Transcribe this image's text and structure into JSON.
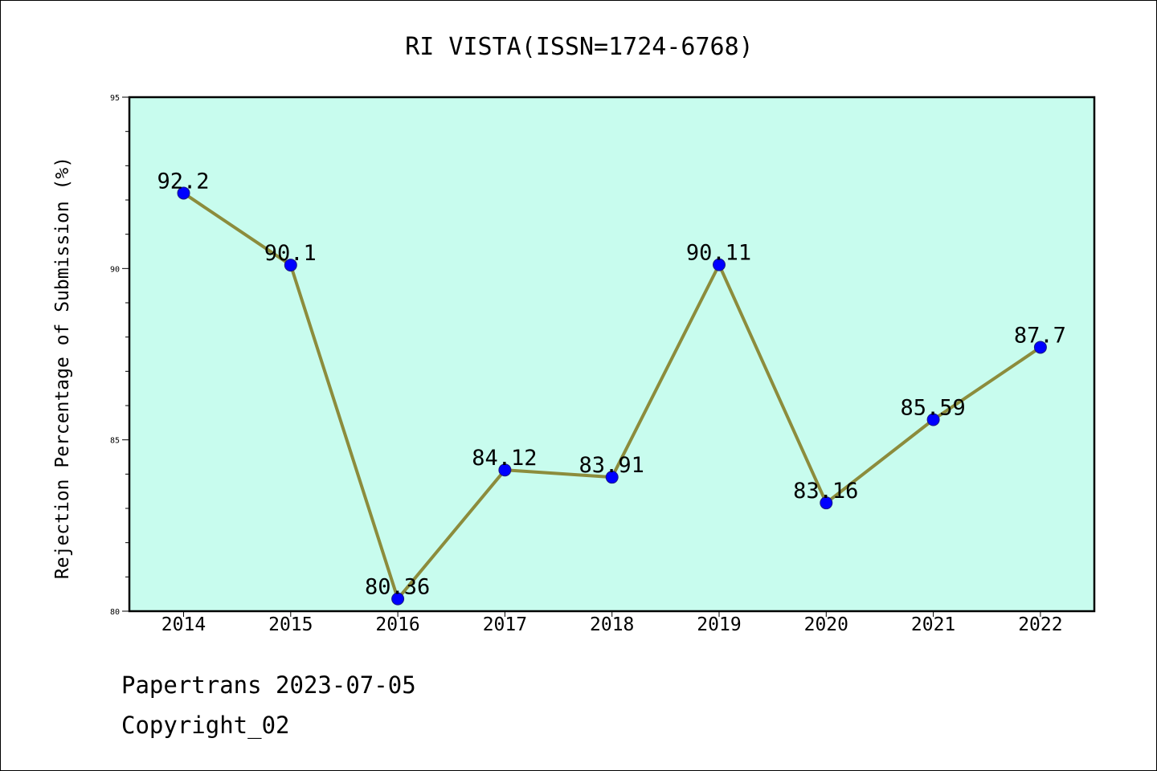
{
  "chart_data": {
    "type": "line",
    "title": "RI VISTA(ISSN=1724-6768)",
    "ylabel": "Rejection Percentage of Submission (%)",
    "xlabel": "",
    "categories": [
      "2014",
      "2015",
      "2016",
      "2017",
      "2018",
      "2019",
      "2020",
      "2021",
      "2022"
    ],
    "series": [
      {
        "values": [
          92.2,
          90.1,
          80.36,
          84.12,
          83.91,
          90.11,
          83.16,
          85.59,
          87.7
        ]
      }
    ],
    "data_labels": [
      "92.2",
      "90.1",
      "80.36",
      "84.12",
      "83.91",
      "90.11",
      "83.16",
      "85.59",
      "87.7"
    ],
    "ylim": [
      80,
      95
    ],
    "yticks": [
      "80",
      "85",
      "90",
      "95"
    ],
    "grid": false,
    "colors": {
      "plot_background": "#c8fcee",
      "line": "#8c8c3c",
      "marker": "#0000ff"
    }
  },
  "footer": {
    "line1": "Papertrans 2023-07-05",
    "line2": "Copyright_02"
  }
}
